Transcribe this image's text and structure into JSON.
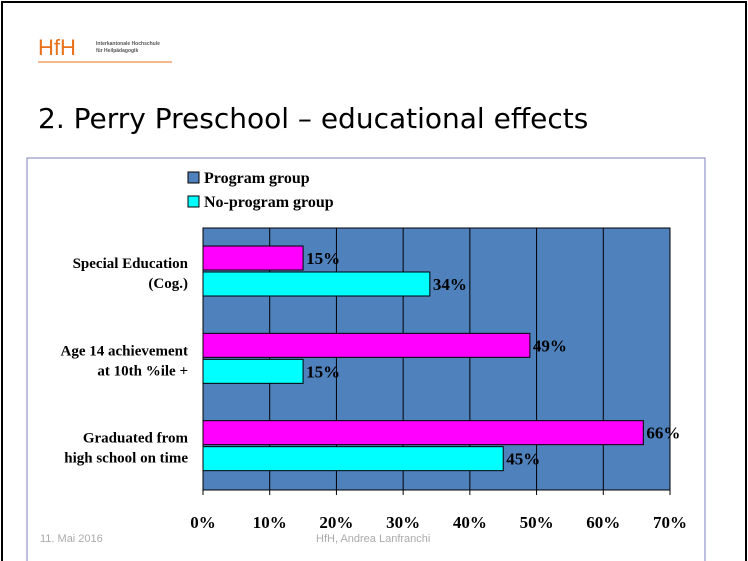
{
  "header": {
    "logo": "HfH",
    "logo_line1": "Interkantonale Hochschule",
    "logo_line2": "für Heilpädagogik",
    "title": "2. Perry Preschool – educational effects"
  },
  "footer": {
    "date": "11. Mai 2016",
    "author": "HfH, Andrea Lanfranchi"
  },
  "chart_data": {
    "type": "hbar",
    "categories": [
      "Special Education\n(Cog.)",
      "Age 14 achievement\nat 10th %ile +",
      "Graduated from\nhigh school on time"
    ],
    "series": [
      {
        "name": "Program group",
        "color": "#ff00ff",
        "legend_color": "#4f81bd",
        "values": [
          15,
          49,
          66
        ],
        "value_labels": [
          "15%",
          "49%",
          "66%"
        ]
      },
      {
        "name": "No-program group",
        "color": "#00ffff",
        "legend_color": "#00ffff",
        "values": [
          34,
          15,
          45
        ],
        "value_labels": [
          "34%",
          "15%",
          "45%"
        ]
      }
    ],
    "xlim": [
      0,
      70
    ],
    "xticks": [
      {
        "value": 0,
        "label": "0%"
      },
      {
        "value": 10,
        "label": "10%"
      },
      {
        "value": 20,
        "label": "20%"
      },
      {
        "value": 30,
        "label": "30%"
      },
      {
        "value": 40,
        "label": "40%"
      },
      {
        "value": 50,
        "label": "50%"
      },
      {
        "value": 60,
        "label": "60%"
      },
      {
        "value": 70,
        "label": "70%"
      }
    ],
    "plot_background": "#4f81bd",
    "grid": true
  }
}
